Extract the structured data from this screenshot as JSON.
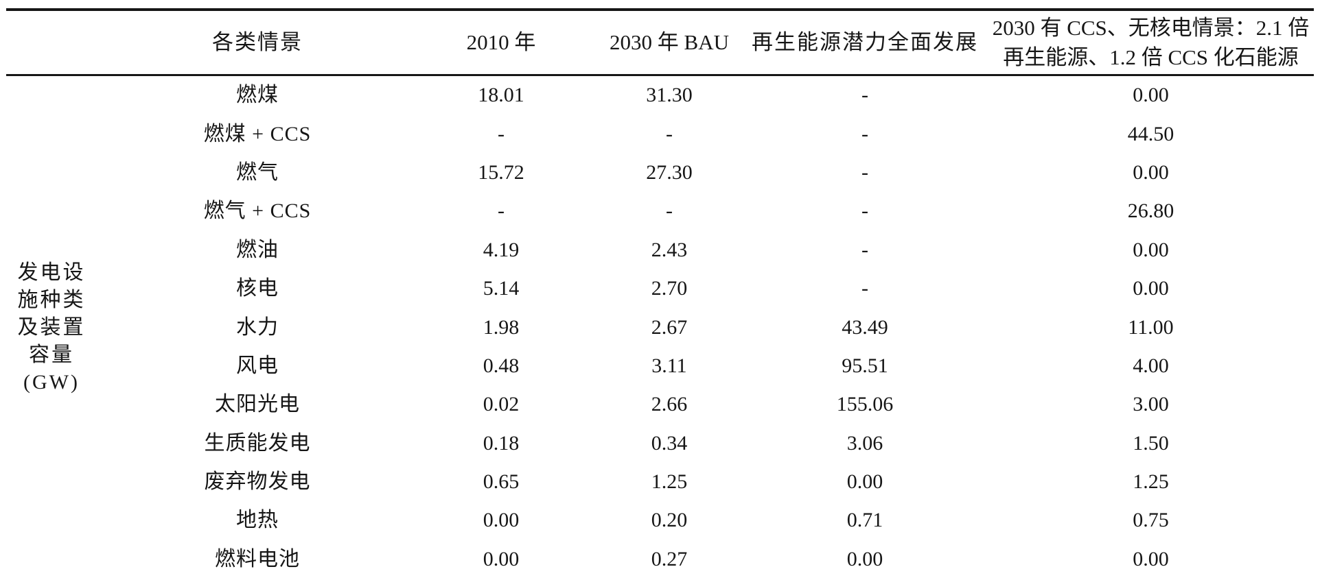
{
  "table": {
    "side_label_lines": [
      "发电设",
      "施种类",
      "及装置",
      "容量",
      "(GW)"
    ],
    "header": {
      "scenario": "各类情景",
      "col_2010": "2010 年",
      "col_2030_bau": "2030 年 BAU",
      "col_renewable": "再生能源潜力全面发展",
      "col_ccs_line1": "2030 有 CCS、无核电情景：2.1 倍",
      "col_ccs_line2": "再生能源、1.2 倍 CCS 化石能源"
    },
    "rows": [
      {
        "label": "燃煤",
        "y2010": "18.01",
        "bau2030": "31.30",
        "renewable": "-",
        "ccs": "0.00"
      },
      {
        "label": "燃煤 + CCS",
        "y2010": "-",
        "bau2030": "-",
        "renewable": "-",
        "ccs": "44.50"
      },
      {
        "label": "燃气",
        "y2010": "15.72",
        "bau2030": "27.30",
        "renewable": "-",
        "ccs": "0.00"
      },
      {
        "label": "燃气 + CCS",
        "y2010": "-",
        "bau2030": "-",
        "renewable": "-",
        "ccs": "26.80"
      },
      {
        "label": "燃油",
        "y2010": "4.19",
        "bau2030": "2.43",
        "renewable": "-",
        "ccs": "0.00"
      },
      {
        "label": "核电",
        "y2010": "5.14",
        "bau2030": "2.70",
        "renewable": "-",
        "ccs": "0.00"
      },
      {
        "label": "水力",
        "y2010": "1.98",
        "bau2030": "2.67",
        "renewable": "43.49",
        "ccs": "11.00"
      },
      {
        "label": "风电",
        "y2010": "0.48",
        "bau2030": "3.11",
        "renewable": "95.51",
        "ccs": "4.00"
      },
      {
        "label": "太阳光电",
        "y2010": "0.02",
        "bau2030": "2.66",
        "renewable": "155.06",
        "ccs": "3.00"
      },
      {
        "label": "生质能发电",
        "y2010": "0.18",
        "bau2030": "0.34",
        "renewable": "3.06",
        "ccs": "1.50"
      },
      {
        "label": "废弃物发电",
        "y2010": "0.65",
        "bau2030": "1.25",
        "renewable": "0.00",
        "ccs": "1.25"
      },
      {
        "label": "地热",
        "y2010": "0.00",
        "bau2030": "0.20",
        "renewable": "0.71",
        "ccs": "0.75"
      },
      {
        "label": "燃料电池",
        "y2010": "0.00",
        "bau2030": "0.27",
        "renewable": "0.00",
        "ccs": "0.00"
      }
    ]
  },
  "chart_data": {
    "type": "table",
    "title": "发电设施种类及装置容量(GW)",
    "row_group_label": "发电设施种类及装置容量(GW)",
    "columns": [
      "各类情景",
      "2010 年",
      "2030 年 BAU",
      "再生能源潜力全面发展",
      "2030 有 CCS、无核电情景：2.1 倍再生能源、1.2 倍 CCS 化石能源"
    ],
    "rows": [
      [
        "燃煤",
        18.01,
        31.3,
        null,
        0.0
      ],
      [
        "燃煤 + CCS",
        null,
        null,
        null,
        44.5
      ],
      [
        "燃气",
        15.72,
        27.3,
        null,
        0.0
      ],
      [
        "燃气 + CCS",
        null,
        null,
        null,
        26.8
      ],
      [
        "燃油",
        4.19,
        2.43,
        null,
        0.0
      ],
      [
        "核电",
        5.14,
        2.7,
        null,
        0.0
      ],
      [
        "水力",
        1.98,
        2.67,
        43.49,
        11.0
      ],
      [
        "风电",
        0.48,
        3.11,
        95.51,
        4.0
      ],
      [
        "太阳光电",
        0.02,
        2.66,
        155.06,
        3.0
      ],
      [
        "生质能发电",
        0.18,
        0.34,
        3.06,
        1.5
      ],
      [
        "废弃物发电",
        0.65,
        1.25,
        0.0,
        1.25
      ],
      [
        "地热",
        0.0,
        0.2,
        0.71,
        0.75
      ],
      [
        "燃料电池",
        0.0,
        0.27,
        0.0,
        0.0
      ]
    ],
    "null_display": "-",
    "text_color": "#161616",
    "background_color": "#ffffff"
  }
}
